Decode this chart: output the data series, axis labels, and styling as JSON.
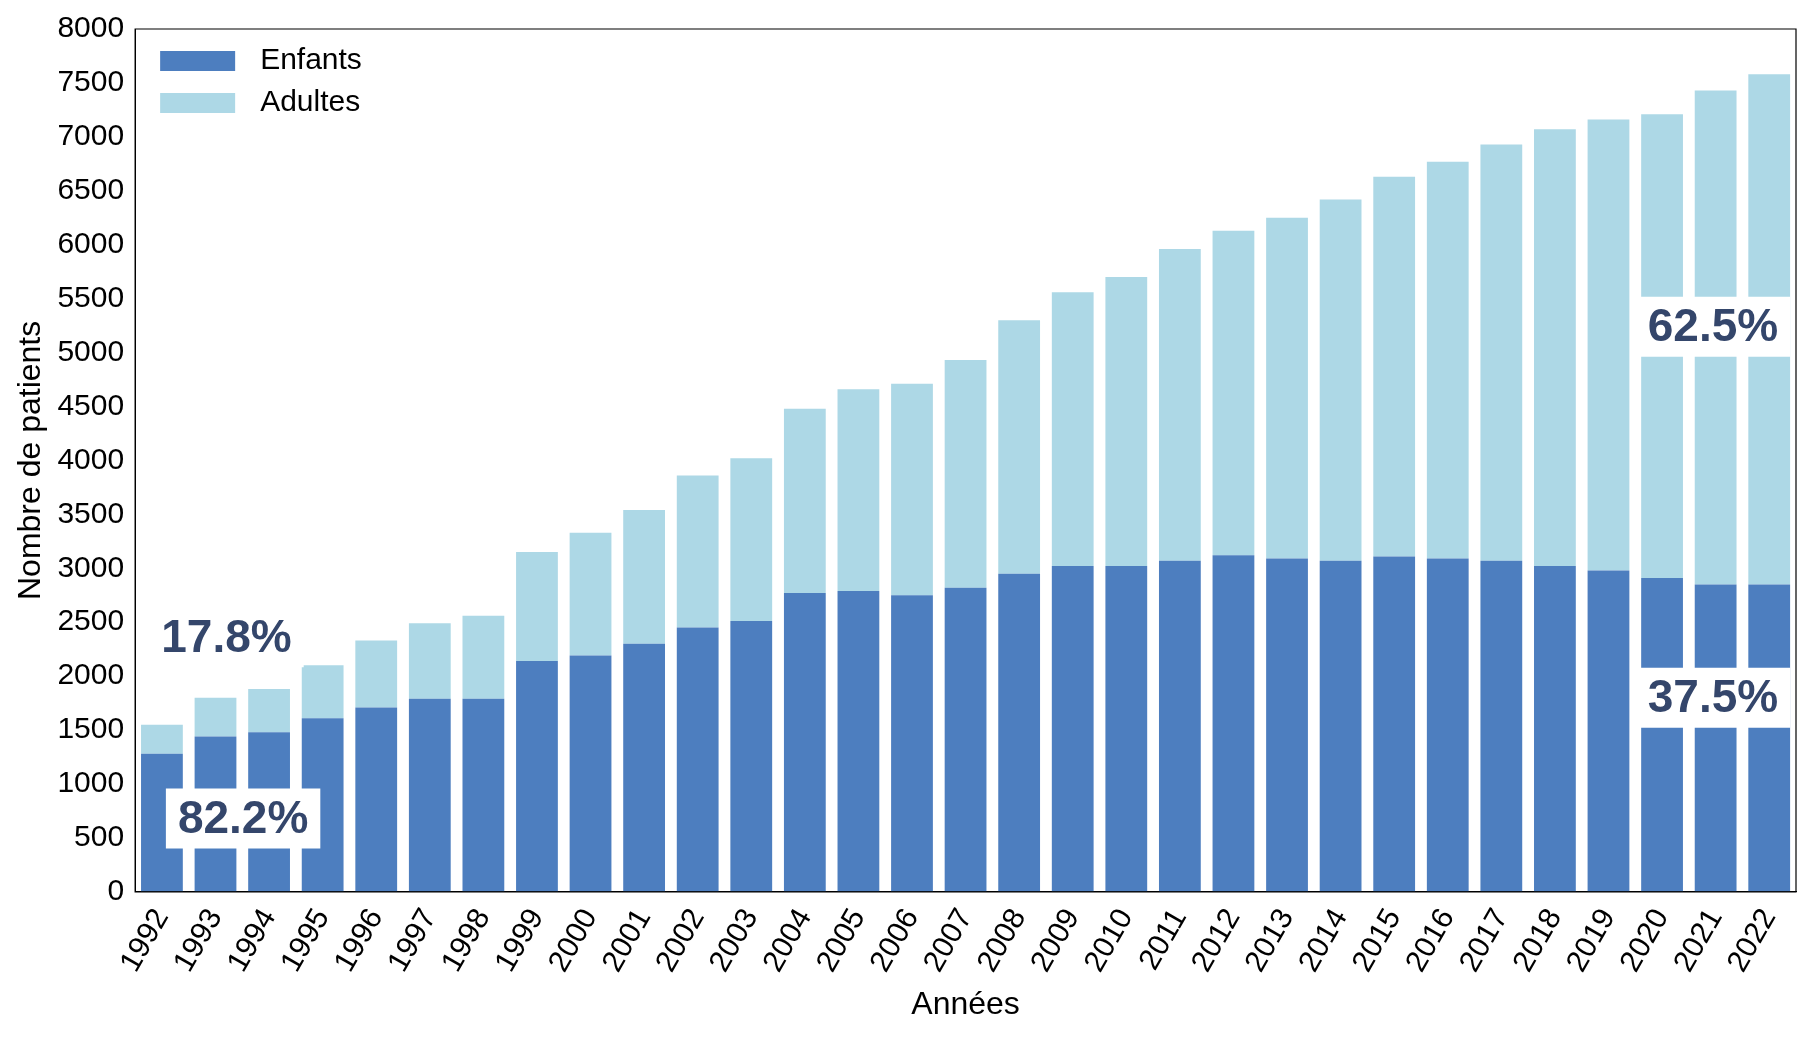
{
  "chart_data": {
    "type": "bar",
    "stacked": true,
    "xlabel": "Années",
    "ylabel": "Nombre de patients",
    "categories": [
      "1992",
      "1993",
      "1994",
      "1995",
      "1996",
      "1997",
      "1998",
      "1999",
      "2000",
      "2001",
      "2002",
      "2003",
      "2004",
      "2005",
      "2006",
      "2007",
      "2008",
      "2009",
      "2010",
      "2011",
      "2012",
      "2013",
      "2014",
      "2015",
      "2016",
      "2017",
      "2018",
      "2019",
      "2020",
      "2021",
      "2022"
    ],
    "series": [
      {
        "name": "Enfants",
        "color": "#4d7ebf",
        "values": [
          1280,
          1440,
          1480,
          1610,
          1710,
          1790,
          1790,
          2140,
          2190,
          2300,
          2450,
          2510,
          2770,
          2790,
          2750,
          2820,
          2950,
          3020,
          3020,
          3070,
          3120,
          3090,
          3070,
          3110,
          3090,
          3070,
          3020,
          2980,
          2910,
          2850,
          2850
        ]
      },
      {
        "name": "Adultes",
        "color": "#add8e6",
        "values": [
          270,
          360,
          400,
          490,
          620,
          700,
          770,
          1010,
          1140,
          1240,
          1410,
          1510,
          1710,
          1870,
          1960,
          2110,
          2350,
          2540,
          2680,
          2890,
          3010,
          3160,
          3350,
          3520,
          3680,
          3860,
          4050,
          4180,
          4300,
          4580,
          4730
        ]
      }
    ],
    "ylim": [
      0,
      8000
    ],
    "yticks": [
      0,
      500,
      1000,
      1500,
      2000,
      2500,
      3000,
      3500,
      4000,
      4500,
      5000,
      5500,
      6000,
      6500,
      7000,
      7500,
      8000
    ],
    "grid": false,
    "legend": "top left",
    "annotations": [
      "17.8%",
      "82.2%",
      "62.5%",
      "37.5%"
    ]
  }
}
